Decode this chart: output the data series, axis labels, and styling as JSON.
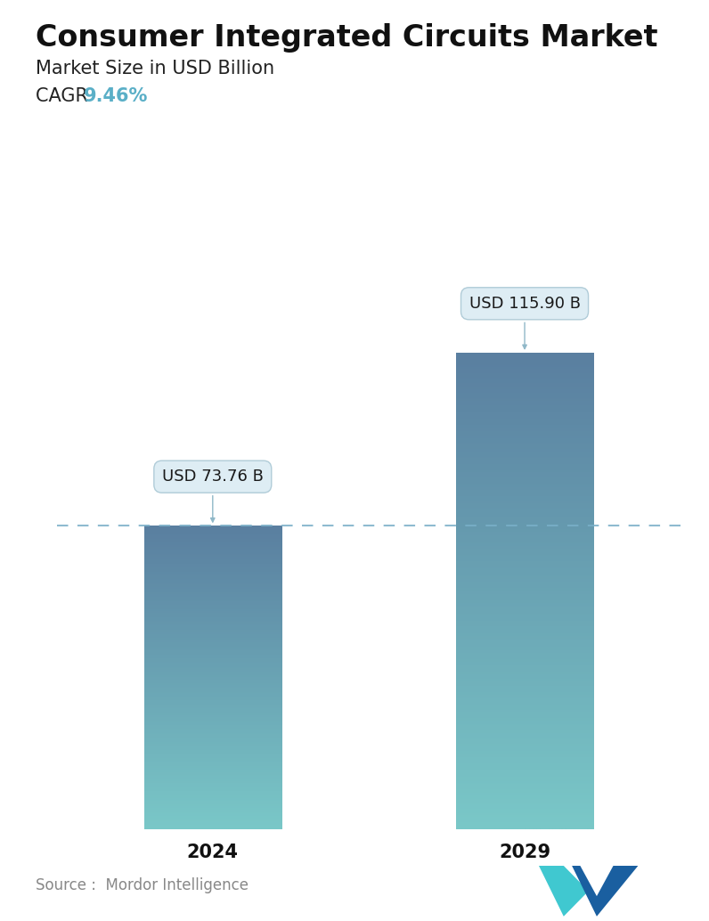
{
  "title": "Consumer Integrated Circuits Market",
  "subtitle": "Market Size in USD Billion",
  "cagr_label": "CAGR ",
  "cagr_value": "9.46%",
  "cagr_color": "#5aafc7",
  "categories": [
    "2024",
    "2029"
  ],
  "values": [
    73.76,
    115.9
  ],
  "labels": [
    "USD 73.76 B",
    "USD 115.90 B"
  ],
  "bar_top_color": "#5a7fa0",
  "bar_bottom_color": "#7ac8c8",
  "dashed_line_color": "#7ab0c8",
  "source_text": "Source :  Mordor Intelligence",
  "background_color": "#ffffff",
  "title_fontsize": 24,
  "subtitle_fontsize": 15,
  "cagr_fontsize": 15,
  "label_fontsize": 13,
  "tick_fontsize": 15,
  "source_fontsize": 12
}
